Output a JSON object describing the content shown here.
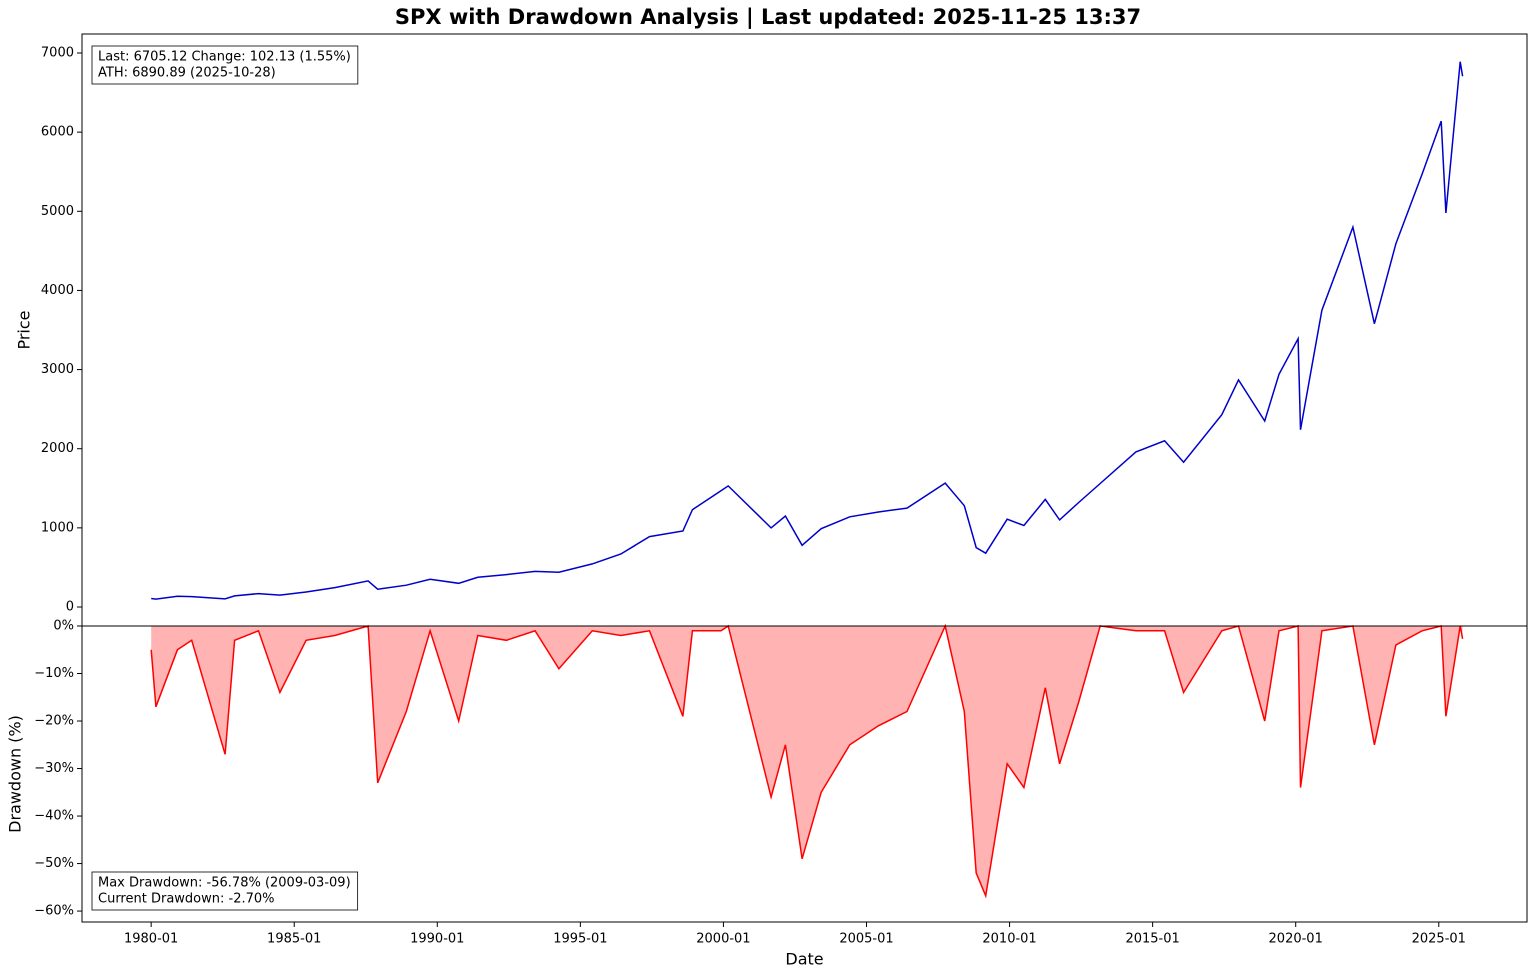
{
  "chart_data": [
    {
      "type": "line",
      "title": "SPX with Drawdown Analysis | Last updated: 2025-11-25 13:37",
      "ylabel": "Price",
      "annotation": [
        "Last: 6705.12  Change: 102.13 (1.55%)",
        "ATH: 6890.89 (2025-10-28)"
      ],
      "x": [
        "1980-01",
        "1980-03",
        "1980-12",
        "1981-06",
        "1982-08",
        "1982-12",
        "1983-10",
        "1984-07",
        "1985-06",
        "1986-06",
        "1987-08",
        "1987-12",
        "1988-12",
        "1989-10",
        "1990-10",
        "1991-06",
        "1992-06",
        "1993-06",
        "1994-04",
        "1995-06",
        "1996-06",
        "1997-06",
        "1998-08",
        "1998-12",
        "1999-12",
        "2000-03",
        "2001-09",
        "2002-03",
        "2002-10",
        "2003-06",
        "2004-06",
        "2005-06",
        "2006-06",
        "2007-10",
        "2008-06",
        "2008-11",
        "2009-03",
        "2009-12",
        "2010-07",
        "2011-04",
        "2011-10",
        "2012-06",
        "2013-03",
        "2014-06",
        "2015-06",
        "2016-02",
        "2017-06",
        "2018-01",
        "2018-12",
        "2019-06",
        "2020-02",
        "2020-03",
        "2020-12",
        "2022-01",
        "2022-10",
        "2023-07",
        "2024-06",
        "2025-02",
        "2025-04",
        "2025-10",
        "2025-11"
      ],
      "series": [
        {
          "name": "Price",
          "color": "#0000cc",
          "values": [
            108,
            100,
            135,
            132,
            103,
            140,
            170,
            150,
            190,
            245,
            330,
            225,
            275,
            350,
            300,
            375,
            410,
            450,
            440,
            545,
            670,
            890,
            960,
            1230,
            1470,
            1530,
            1000,
            1150,
            780,
            990,
            1140,
            1200,
            1250,
            1565,
            1280,
            750,
            680,
            1110,
            1030,
            1360,
            1100,
            1320,
            1560,
            1960,
            2100,
            1830,
            2430,
            2870,
            2350,
            2940,
            3390,
            2240,
            3750,
            4800,
            3580,
            4590,
            5470,
            6140,
            4980,
            6890,
            6705.12
          ]
        }
      ],
      "xlim": [
        "1977-08",
        "2028-02"
      ],
      "ylim": [
        -240,
        7240
      ],
      "yticks": [
        0,
        1000,
        2000,
        3000,
        4000,
        5000,
        6000,
        7000
      ]
    },
    {
      "type": "area",
      "ylabel": "Drawdown (%)",
      "xlabel": "Date",
      "annotation": [
        "Max Drawdown: -56.78% (2009-03-09)",
        "Current Drawdown: -2.70%"
      ],
      "x": [
        "1980-01",
        "1980-03",
        "1980-12",
        "1981-06",
        "1982-08",
        "1982-12",
        "1983-10",
        "1984-07",
        "1985-06",
        "1986-06",
        "1987-08",
        "1987-12",
        "1988-12",
        "1989-10",
        "1990-10",
        "1991-06",
        "1992-06",
        "1993-06",
        "1994-04",
        "1995-06",
        "1996-06",
        "1997-06",
        "1998-08",
        "1998-12",
        "1999-12",
        "2000-03",
        "2001-09",
        "2002-03",
        "2002-10",
        "2003-06",
        "2004-06",
        "2005-06",
        "2006-06",
        "2007-10",
        "2008-06",
        "2008-11",
        "2009-03",
        "2009-12",
        "2010-07",
        "2011-04",
        "2011-10",
        "2012-06",
        "2013-03",
        "2014-06",
        "2015-06",
        "2016-02",
        "2017-06",
        "2018-01",
        "2018-12",
        "2019-06",
        "2020-02",
        "2020-03",
        "2020-12",
        "2022-01",
        "2022-10",
        "2023-07",
        "2024-06",
        "2025-02",
        "2025-04",
        "2025-10",
        "2025-11"
      ],
      "series": [
        {
          "name": "Drawdown",
          "color": "#ff0000",
          "fill": "#ffb3b3",
          "values": [
            -5,
            -17,
            -5,
            -3,
            -27,
            -3,
            -1,
            -14,
            -3,
            -2,
            0,
            -33,
            -18,
            -1,
            -20,
            -2,
            -3,
            -1,
            -9,
            -1,
            -2,
            -1,
            -19,
            -1,
            -1,
            0,
            -36,
            -25,
            -49,
            -35,
            -25,
            -21,
            -18,
            0,
            -18,
            -52,
            -56.78,
            -29,
            -34,
            -13,
            -29,
            -16,
            0,
            -1,
            -1,
            -14,
            -1,
            0,
            -20,
            -1,
            0,
            -34,
            -1,
            0,
            -25,
            -4,
            -1,
            0,
            -19,
            0,
            -2.7
          ]
        }
      ],
      "xlim": [
        "1977-08",
        "2028-02"
      ],
      "ylim": [
        -62.3,
        0
      ],
      "yticks": [
        {
          "value": 0,
          "label": "0%"
        },
        {
          "value": -10,
          "label": "−10%"
        },
        {
          "value": -20,
          "label": "−20%"
        },
        {
          "value": -30,
          "label": "−30%"
        },
        {
          "value": -40,
          "label": "−40%"
        },
        {
          "value": -50,
          "label": "−50%"
        },
        {
          "value": -60,
          "label": "−60%"
        }
      ],
      "xticks": [
        "1980-01",
        "1985-01",
        "1990-01",
        "1995-01",
        "2000-01",
        "2005-01",
        "2010-01",
        "2015-01",
        "2020-01",
        "2025-01"
      ]
    }
  ]
}
